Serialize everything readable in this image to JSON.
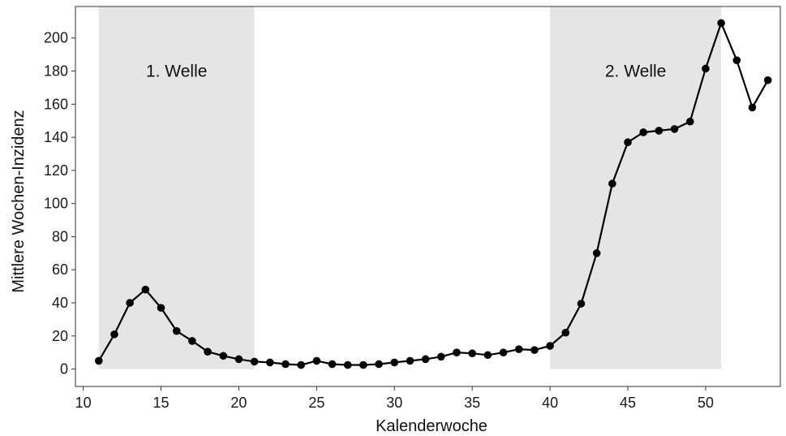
{
  "chart_data": {
    "type": "line",
    "title": "",
    "xlabel": "Kalenderwoche",
    "ylabel": "Mittlere Wochen-Inzidenz",
    "xlim": [
      9.5,
      54.8
    ],
    "ylim": [
      -10.5,
      219
    ],
    "x_ticks": [
      10,
      15,
      20,
      25,
      30,
      35,
      40,
      45,
      50
    ],
    "y_ticks": [
      0,
      20,
      40,
      60,
      80,
      100,
      120,
      140,
      160,
      180,
      200
    ],
    "grid": false,
    "legend": "none",
    "colors": {
      "line": "#000000",
      "band_fill": "#e5e5e5",
      "frame": "#333333"
    },
    "bands": [
      {
        "label": "1. Welle",
        "x_start": 11,
        "x_end": 21
      },
      {
        "label": "2. Welle",
        "x_start": 40,
        "x_end": 51
      }
    ],
    "series": [
      {
        "x": [
          11,
          12,
          13,
          14,
          15,
          16,
          17,
          18,
          19,
          20,
          21,
          22,
          23,
          24,
          25,
          26,
          27,
          28,
          29,
          30,
          31,
          32,
          33,
          34,
          35,
          36,
          37,
          38,
          39,
          40,
          41,
          42,
          43,
          44,
          45,
          46,
          47,
          48,
          49,
          50,
          51,
          52,
          53,
          54
        ],
        "values": [
          5,
          21,
          40,
          48,
          37,
          23,
          17,
          10.5,
          8,
          6,
          4.5,
          4,
          3,
          2.5,
          5,
          3,
          2.5,
          2.5,
          3,
          4,
          5,
          6,
          7.5,
          10,
          9.5,
          8.5,
          10,
          12,
          11.5,
          14,
          22,
          39.5,
          70,
          112,
          137,
          143,
          144,
          145,
          149.5,
          181.5,
          209,
          186.5,
          158,
          174.5
        ]
      }
    ]
  }
}
